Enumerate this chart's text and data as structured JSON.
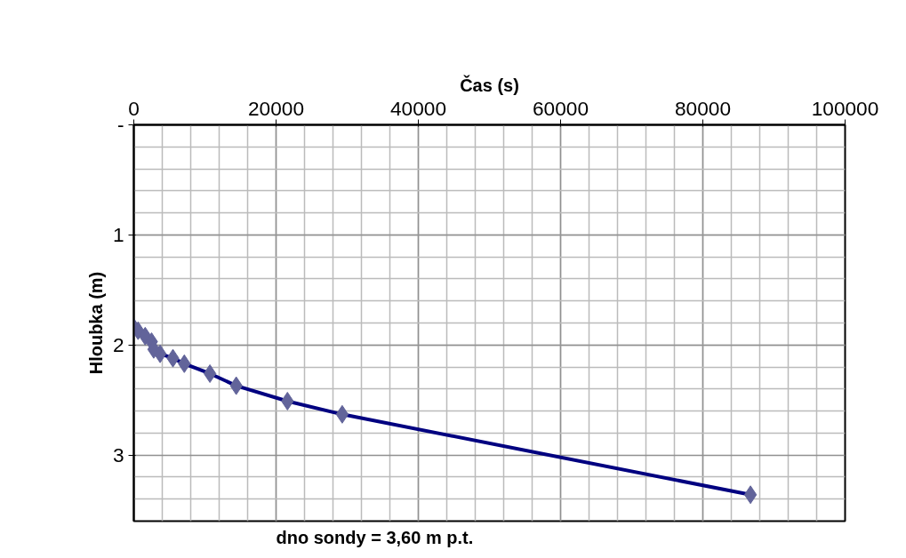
{
  "chart_data": {
    "type": "line",
    "xlabel": "Čas (s)",
    "ylabel": "Hloubka (m)",
    "x": [
      0,
      600,
      1600,
      2500,
      2800,
      3700,
      5500,
      7100,
      10700,
      14400,
      21600,
      29300,
      86700
    ],
    "series": [
      {
        "color": "#000080",
        "values": [
          1.84,
          1.87,
          1.92,
          1.97,
          2.04,
          2.08,
          2.12,
          2.17,
          2.26,
          2.37,
          2.51,
          2.63,
          3.36
        ]
      }
    ],
    "marker": "diamond",
    "line_style": "solid",
    "xlim": [
      0,
      100000
    ],
    "xticks": [
      0,
      20000,
      40000,
      60000,
      80000,
      100000
    ],
    "ylim": [
      3.6,
      0
    ],
    "yticks": [
      {
        "value": 0,
        "label": "-"
      },
      1,
      2,
      3
    ],
    "grid": true,
    "annotations": [
      "dno sondy = 3,60 m p.t."
    ]
  }
}
